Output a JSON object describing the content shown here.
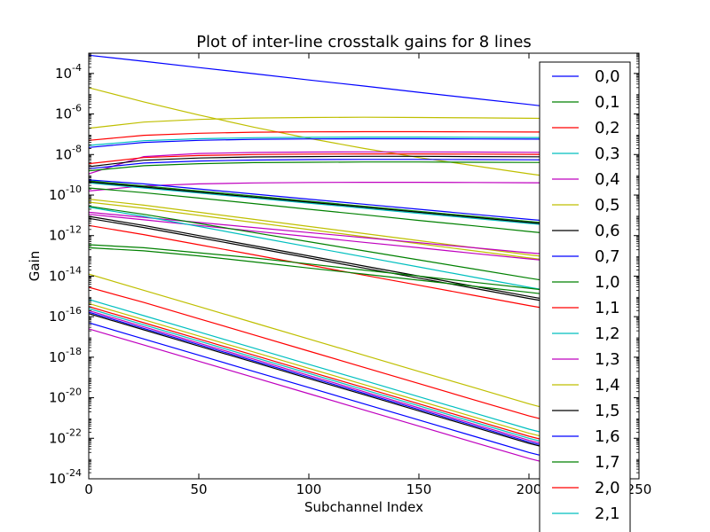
{
  "chart_data": {
    "type": "line",
    "title": "Plot of inter-line crosstalk gains for 8 lines",
    "xlabel": "Subchannel Index",
    "ylabel": "Gain",
    "xlim": [
      0,
      250
    ],
    "ylim_log10": [
      -24,
      -3
    ],
    "yscale": "log",
    "grid": false,
    "legend_placement": "right (overlapping plot, clipped at bottom)",
    "xticks": [
      0,
      50,
      100,
      150,
      200,
      250
    ],
    "xtick_labels": [
      "0",
      "50",
      "100",
      "150",
      "200",
      "250"
    ],
    "yticks_log10": [
      -24,
      -22,
      -20,
      -18,
      -16,
      -14,
      -12,
      -10,
      -8,
      -6,
      -4
    ],
    "ytick_exponents": [
      "-24",
      "-22",
      "-20",
      "-18",
      "-16",
      "-14",
      "-12",
      "-10",
      "-8",
      "-6",
      "-4"
    ],
    "ytick_base": "10",
    "x": [
      0,
      25,
      50,
      75,
      100,
      125,
      150,
      175,
      200,
      224
    ],
    "series_colors": [
      "#0000ff",
      "#008000",
      "#ff0000",
      "#00bfbf",
      "#bf00bf",
      "#bfbf00",
      "#000000"
    ],
    "legend": [
      {
        "label": "0,0",
        "color": "#0000ff"
      },
      {
        "label": "0,1",
        "color": "#008000"
      },
      {
        "label": "0,2",
        "color": "#ff0000"
      },
      {
        "label": "0,3",
        "color": "#00bfbf"
      },
      {
        "label": "0,4",
        "color": "#bf00bf"
      },
      {
        "label": "0,5",
        "color": "#bfbf00"
      },
      {
        "label": "0,6",
        "color": "#000000"
      },
      {
        "label": "0,7",
        "color": "#0000ff"
      },
      {
        "label": "1,0",
        "color": "#008000"
      },
      {
        "label": "1,1",
        "color": "#ff0000"
      },
      {
        "label": "1,2",
        "color": "#00bfbf"
      },
      {
        "label": "1,3",
        "color": "#bf00bf"
      },
      {
        "label": "1,4",
        "color": "#bfbf00"
      },
      {
        "label": "1,5",
        "color": "#000000"
      },
      {
        "label": "1,6",
        "color": "#0000ff"
      },
      {
        "label": "1,7",
        "color": "#008000"
      },
      {
        "label": "2,0",
        "color": "#ff0000"
      },
      {
        "label": "2,1",
        "color": "#00bfbf"
      }
    ],
    "series_log10": [
      {
        "color": "#0000ff",
        "values": [
          -3.1,
          -3.4,
          -3.71,
          -4.01,
          -4.32,
          -4.62,
          -4.93,
          -5.23,
          -5.53,
          -5.83
        ]
      },
      {
        "color": "#bfbf00",
        "values": [
          -4.7,
          -5.4,
          -6.05,
          -6.65,
          -7.2,
          -7.7,
          -8.15,
          -8.55,
          -8.95,
          -9.3
        ]
      },
      {
        "color": "#bfbf00",
        "values": [
          -6.7,
          -6.4,
          -6.27,
          -6.2,
          -6.17,
          -6.16,
          -6.17,
          -6.19,
          -6.21,
          -6.23
        ]
      },
      {
        "color": "#ff0000",
        "values": [
          -7.3,
          -7.05,
          -6.95,
          -6.9,
          -6.88,
          -6.87,
          -6.87,
          -6.88,
          -6.89,
          -6.9
        ]
      },
      {
        "color": "#00bfbf",
        "values": [
          -7.55,
          -7.32,
          -7.22,
          -7.17,
          -7.15,
          -7.14,
          -7.14,
          -7.15,
          -7.16,
          -7.17
        ]
      },
      {
        "color": "#0000ff",
        "values": [
          -7.65,
          -7.4,
          -7.3,
          -7.25,
          -7.23,
          -7.22,
          -7.22,
          -7.23,
          -7.24,
          -7.25
        ]
      },
      {
        "color": "#bf00bf",
        "values": [
          -8.95,
          -8.1,
          -7.95,
          -7.9,
          -7.88,
          -7.87,
          -7.87,
          -7.88,
          -7.89,
          -7.9
        ]
      },
      {
        "color": "#ff0000",
        "values": [
          -8.45,
          -8.15,
          -8.05,
          -8.0,
          -7.98,
          -7.97,
          -7.97,
          -7.98,
          -7.99,
          -8.0
        ]
      },
      {
        "color": "#000000",
        "values": [
          -8.6,
          -8.28,
          -8.17,
          -8.12,
          -8.1,
          -8.09,
          -8.09,
          -8.1,
          -8.11,
          -8.12
        ]
      },
      {
        "color": "#0000ff",
        "values": [
          -8.7,
          -8.42,
          -8.32,
          -8.27,
          -8.25,
          -8.24,
          -8.24,
          -8.25,
          -8.26,
          -8.27
        ]
      },
      {
        "color": "#008000",
        "values": [
          -8.8,
          -8.55,
          -8.45,
          -8.4,
          -8.38,
          -8.37,
          -8.37,
          -8.38,
          -8.39,
          -8.4
        ]
      },
      {
        "color": "#bf00bf",
        "values": [
          -9.8,
          -9.55,
          -9.45,
          -9.4,
          -9.38,
          -9.37,
          -9.37,
          -9.38,
          -9.39,
          -9.4
        ]
      },
      {
        "color": "#0000ff",
        "values": [
          -9.25,
          -9.45,
          -9.7,
          -9.95,
          -10.2,
          -10.45,
          -10.7,
          -10.95,
          -11.2,
          -11.42
        ]
      },
      {
        "color": "#008000",
        "values": [
          -9.3,
          -9.55,
          -9.8,
          -10.05,
          -10.3,
          -10.55,
          -10.8,
          -11.05,
          -11.3,
          -11.52
        ]
      },
      {
        "color": "#008000",
        "values": [
          -9.65,
          -9.88,
          -10.15,
          -10.42,
          -10.7,
          -10.97,
          -11.25,
          -11.52,
          -11.8,
          -12.05
        ]
      },
      {
        "color": "#00bfbf",
        "values": [
          -9.4,
          -9.65,
          -9.9,
          -10.15,
          -10.4,
          -10.65,
          -10.9,
          -11.15,
          -11.4,
          -11.62
        ]
      },
      {
        "color": "#000000",
        "values": [
          -9.35,
          -9.6,
          -9.85,
          -10.1,
          -10.35,
          -10.6,
          -10.85,
          -11.1,
          -11.35,
          -11.58
        ]
      },
      {
        "color": "#bfbf00",
        "values": [
          -10.2,
          -10.5,
          -10.85,
          -11.2,
          -11.55,
          -11.9,
          -12.25,
          -12.6,
          -12.95,
          -13.25
        ]
      },
      {
        "color": "#bfbf00",
        "values": [
          -10.35,
          -10.65,
          -11.0,
          -11.35,
          -11.7,
          -12.05,
          -12.4,
          -12.75,
          -13.1,
          -13.4
        ]
      },
      {
        "color": "#bf00bf",
        "values": [
          -10.85,
          -11.1,
          -11.35,
          -11.6,
          -11.85,
          -12.1,
          -12.35,
          -12.6,
          -12.85,
          -13.05
        ]
      },
      {
        "color": "#bf00bf",
        "values": [
          -10.95,
          -11.22,
          -11.5,
          -11.78,
          -12.05,
          -12.33,
          -12.6,
          -12.88,
          -13.15,
          -13.4
        ]
      },
      {
        "color": "#008000",
        "values": [
          -10.55,
          -10.95,
          -11.4,
          -11.85,
          -12.3,
          -12.75,
          -13.2,
          -13.65,
          -14.1,
          -14.5
        ]
      },
      {
        "color": "#00bfbf",
        "values": [
          -10.6,
          -11.05,
          -11.55,
          -12.05,
          -12.55,
          -13.05,
          -13.55,
          -14.05,
          -14.55,
          -15.0
        ]
      },
      {
        "color": "#000000",
        "values": [
          -11.05,
          -11.5,
          -12.0,
          -12.5,
          -13.0,
          -13.5,
          -14.0,
          -14.5,
          -15.0,
          -15.45
        ]
      },
      {
        "color": "#000000",
        "values": [
          -11.15,
          -11.6,
          -12.1,
          -12.6,
          -13.1,
          -13.6,
          -14.1,
          -14.6,
          -15.1,
          -15.55
        ]
      },
      {
        "color": "#ff0000",
        "values": [
          -11.5,
          -11.95,
          -12.45,
          -12.95,
          -13.45,
          -13.95,
          -14.45,
          -14.95,
          -15.45,
          -15.9
        ]
      },
      {
        "color": "#008000",
        "values": [
          -12.45,
          -12.6,
          -12.85,
          -13.1,
          -13.4,
          -13.7,
          -14.0,
          -14.3,
          -14.6,
          -14.9
        ]
      },
      {
        "color": "#008000",
        "values": [
          -12.6,
          -12.75,
          -13.0,
          -13.3,
          -13.6,
          -13.9,
          -14.2,
          -14.5,
          -14.8,
          -15.1
        ]
      },
      {
        "color": "#bfbf00",
        "values": [
          -13.9,
          -14.7,
          -15.5,
          -16.3,
          -17.1,
          -17.9,
          -18.7,
          -19.5,
          -20.3,
          -21.0
        ]
      },
      {
        "color": "#ff0000",
        "values": [
          -14.55,
          -15.3,
          -16.1,
          -16.9,
          -17.7,
          -18.5,
          -19.3,
          -20.1,
          -20.9,
          -21.55
        ]
      },
      {
        "color": "#00bfbf",
        "values": [
          -15.15,
          -15.95,
          -16.75,
          -17.55,
          -18.35,
          -19.15,
          -19.95,
          -20.75,
          -21.55,
          -22.2
        ]
      },
      {
        "color": "#bfbf00",
        "values": [
          -15.35,
          -16.15,
          -16.95,
          -17.75,
          -18.55,
          -19.35,
          -20.15,
          -20.95,
          -21.75,
          -22.4
        ]
      },
      {
        "color": "#ff0000",
        "values": [
          -15.5,
          -16.3,
          -17.1,
          -17.9,
          -18.7,
          -19.5,
          -20.3,
          -21.1,
          -21.9,
          -22.55
        ]
      },
      {
        "color": "#00bfbf",
        "values": [
          -15.6,
          -16.4,
          -17.2,
          -18.0,
          -18.8,
          -19.6,
          -20.4,
          -21.2,
          -22.0,
          -22.65
        ]
      },
      {
        "color": "#bf00bf",
        "values": [
          -15.7,
          -16.5,
          -17.3,
          -18.1,
          -18.9,
          -19.7,
          -20.5,
          -21.3,
          -22.1,
          -22.75
        ]
      },
      {
        "color": "#0000ff",
        "values": [
          -15.78,
          -16.58,
          -17.38,
          -18.18,
          -18.98,
          -19.78,
          -20.58,
          -21.38,
          -22.18,
          -22.82
        ]
      },
      {
        "color": "#000000",
        "values": [
          -15.85,
          -16.65,
          -17.45,
          -18.25,
          -19.05,
          -19.85,
          -20.65,
          -21.45,
          -22.25,
          -22.9
        ]
      },
      {
        "color": "#0000ff",
        "values": [
          -16.3,
          -17.1,
          -17.9,
          -18.7,
          -19.5,
          -20.3,
          -21.1,
          -21.9,
          -22.7,
          -23.35
        ]
      },
      {
        "color": "#bf00bf",
        "values": [
          -16.6,
          -17.4,
          -18.2,
          -19.0,
          -19.8,
          -20.6,
          -21.4,
          -22.2,
          -23.0,
          -23.65
        ]
      }
    ]
  }
}
